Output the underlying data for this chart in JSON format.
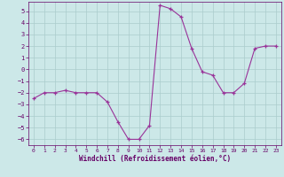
{
  "x": [
    0,
    1,
    2,
    3,
    4,
    5,
    6,
    7,
    8,
    9,
    10,
    11,
    12,
    13,
    14,
    15,
    16,
    17,
    18,
    19,
    20,
    21,
    22,
    23
  ],
  "y": [
    -2.5,
    -2.0,
    -2.0,
    -1.8,
    -2.0,
    -2.0,
    -2.0,
    -2.8,
    -4.5,
    -6.0,
    -6.0,
    -4.8,
    5.5,
    5.2,
    4.5,
    1.8,
    -0.2,
    -0.5,
    -2.0,
    -2.0,
    -1.2,
    1.8,
    2.0,
    2.0
  ],
  "line_color": "#993399",
  "marker": "+",
  "bg_color": "#cce8e8",
  "grid_color": "#aacccc",
  "axis_label_color": "#660066",
  "tick_color": "#660066",
  "xlabel": "Windchill (Refroidissement éolien,°C)",
  "ylim": [
    -6.5,
    5.8
  ],
  "xlim": [
    -0.5,
    23.5
  ],
  "yticks": [
    -6,
    -5,
    -4,
    -3,
    -2,
    -1,
    0,
    1,
    2,
    3,
    4,
    5
  ],
  "xticks": [
    0,
    1,
    2,
    3,
    4,
    5,
    6,
    7,
    8,
    9,
    10,
    11,
    12,
    13,
    14,
    15,
    16,
    17,
    18,
    19,
    20,
    21,
    22,
    23
  ]
}
